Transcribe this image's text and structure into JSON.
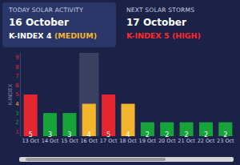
{
  "header": {
    "today": {
      "title": "TODAY SOLAR ACTIVITY",
      "date": "16 October",
      "index": "K-INDEX 4",
      "level": "(MEDIUM)"
    },
    "next": {
      "title": "NEXT SOLAR STORMS",
      "date": "17 October",
      "index": "K-INDEX 5",
      "level": "(HIGH)"
    }
  },
  "chart_data": {
    "type": "bar",
    "y_label": "K-INDEX",
    "categories": [
      "13 Oct",
      "14 Oct",
      "15 Oct",
      "16 Oct",
      "17 Oct",
      "18 Oct",
      "19 Oct",
      "20 Oct",
      "21 Oct",
      "22 Oct",
      "23 Oct"
    ],
    "values": [
      5,
      3,
      3,
      4,
      5,
      4,
      2,
      2,
      2,
      2,
      2
    ],
    "colors": [
      "#e3262f",
      "#17a23a",
      "#17a23a",
      "#f3b52e",
      "#e3262f",
      "#f3b52e",
      "#17a23a",
      "#17a23a",
      "#17a23a",
      "#17a23a",
      "#17a23a"
    ],
    "ylim": [
      0.5,
      9.5
    ],
    "yticks": [
      1,
      2,
      3,
      4,
      5,
      6,
      7,
      8,
      9
    ],
    "grid": false,
    "data_labels": true
  }
}
